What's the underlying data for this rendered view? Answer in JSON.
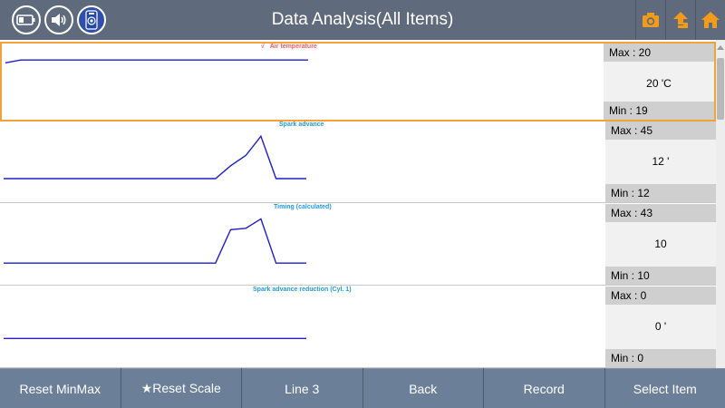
{
  "header": {
    "title": "Data Analysis(All Items)",
    "left_icons": [
      "battery-icon",
      "speaker-icon",
      "vci-device-icon"
    ],
    "right_icons": [
      "camera-icon",
      "back-arrow-icon",
      "home-icon"
    ],
    "colors": {
      "header_bg": "#5f6b7d",
      "icon_accent": "#f29a1a"
    }
  },
  "rows": [
    {
      "title": "Air temperature",
      "title_prefix": "√",
      "title_color": "#ff5a5a",
      "max_label": "Max : 20",
      "current": "20 'C",
      "min_label": "Min :   19",
      "selected": true,
      "chart_data": {
        "type": "line",
        "x": [
          0,
          1,
          2,
          3,
          4,
          5,
          6,
          7,
          8,
          9,
          10,
          11,
          12,
          13,
          14,
          15,
          16,
          17,
          18,
          19,
          20
        ],
        "values": [
          19,
          20,
          20,
          20,
          20,
          20,
          20,
          20,
          20,
          20,
          20,
          20,
          20,
          20,
          20,
          20,
          20,
          20,
          20,
          20,
          20
        ],
        "ylim": [
          0,
          22
        ],
        "color": "#1e1ecc"
      }
    },
    {
      "title": "Spark advance",
      "title_prefix": "",
      "title_color": "#1f9be0",
      "max_label": "Max : 45",
      "current": "12 '",
      "min_label": "Min :   12",
      "selected": false,
      "chart_data": {
        "type": "line",
        "x": [
          0,
          1,
          2,
          3,
          4,
          5,
          6,
          7,
          8,
          9,
          10,
          11,
          12,
          13,
          14,
          15,
          16,
          17,
          18,
          19,
          20
        ],
        "values": [
          12,
          12,
          12,
          12,
          12,
          12,
          12,
          12,
          12,
          12,
          12,
          12,
          12,
          12,
          12,
          22,
          30,
          45,
          12,
          12,
          12
        ],
        "ylim": [
          0,
          48
        ],
        "color": "#1e1ecc"
      }
    },
    {
      "title": "Timing (calculated)",
      "title_prefix": "",
      "title_color": "#1f9be0",
      "max_label": "Max : 43",
      "current": "10",
      "min_label": "Min :   10",
      "selected": false,
      "chart_data": {
        "type": "line",
        "x": [
          0,
          1,
          2,
          3,
          4,
          5,
          6,
          7,
          8,
          9,
          10,
          11,
          12,
          13,
          14,
          15,
          16,
          17,
          18,
          19,
          20
        ],
        "values": [
          10,
          10,
          10,
          10,
          10,
          10,
          10,
          10,
          10,
          10,
          10,
          10,
          10,
          10,
          10,
          35,
          36,
          43,
          10,
          10,
          10
        ],
        "ylim": [
          0,
          46
        ],
        "color": "#1e1ecc"
      }
    },
    {
      "title": "Spark advance reduction (Cyl. 1)",
      "title_prefix": "",
      "title_color": "#1f9be0",
      "max_label": "Max :     0",
      "current": "0 '",
      "min_label": "Min :     0",
      "selected": false,
      "chart_data": {
        "type": "line",
        "x": [
          0,
          1,
          2,
          3,
          4,
          5,
          6,
          7,
          8,
          9,
          10,
          11,
          12,
          13,
          14,
          15,
          16,
          17,
          18,
          19,
          20
        ],
        "values": [
          0,
          0,
          0,
          0,
          0,
          0,
          0,
          0,
          0,
          0,
          0,
          0,
          0,
          0,
          0,
          0,
          0,
          0,
          0,
          0,
          0
        ],
        "ylim": [
          -1,
          2
        ],
        "color": "#1e1ecc"
      }
    }
  ],
  "bottom_buttons": [
    "Reset MinMax",
    "★Reset Scale",
    "Line 3",
    "Back",
    "Record",
    "Select Item"
  ]
}
